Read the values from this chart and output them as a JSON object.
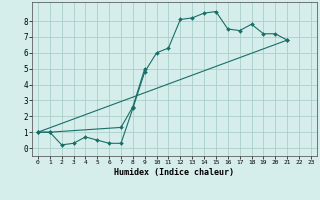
{
  "xlabel": "Humidex (Indice chaleur)",
  "xlim": [
    -0.5,
    23.5
  ],
  "ylim": [
    -0.5,
    9.2
  ],
  "yticks": [
    0,
    1,
    2,
    3,
    4,
    5,
    6,
    7,
    8
  ],
  "xticks": [
    0,
    1,
    2,
    3,
    4,
    5,
    6,
    7,
    8,
    9,
    10,
    11,
    12,
    13,
    14,
    15,
    16,
    17,
    18,
    19,
    20,
    21,
    22,
    23
  ],
  "bg_color": "#d6eeeb",
  "grid_color": "#aacfcb",
  "line_color": "#1a6e68",
  "line1_x": [
    0,
    1,
    2,
    3,
    4,
    5,
    6,
    7,
    8,
    9,
    10,
    11,
    12,
    13,
    14,
    15,
    16,
    17,
    18,
    19,
    20,
    21
  ],
  "line1_y": [
    1,
    1,
    0.2,
    0.3,
    0.7,
    0.5,
    0.3,
    0.3,
    2.5,
    4.8,
    6.0,
    6.3,
    8.1,
    8.2,
    8.5,
    8.6,
    7.5,
    7.4,
    7.8,
    7.2,
    7.2,
    6.8
  ],
  "line2_x": [
    0,
    1,
    7,
    8,
    9
  ],
  "line2_y": [
    1,
    1,
    1.3,
    2.6,
    5.0
  ],
  "line3_x": [
    0,
    21
  ],
  "line3_y": [
    1,
    6.8
  ]
}
